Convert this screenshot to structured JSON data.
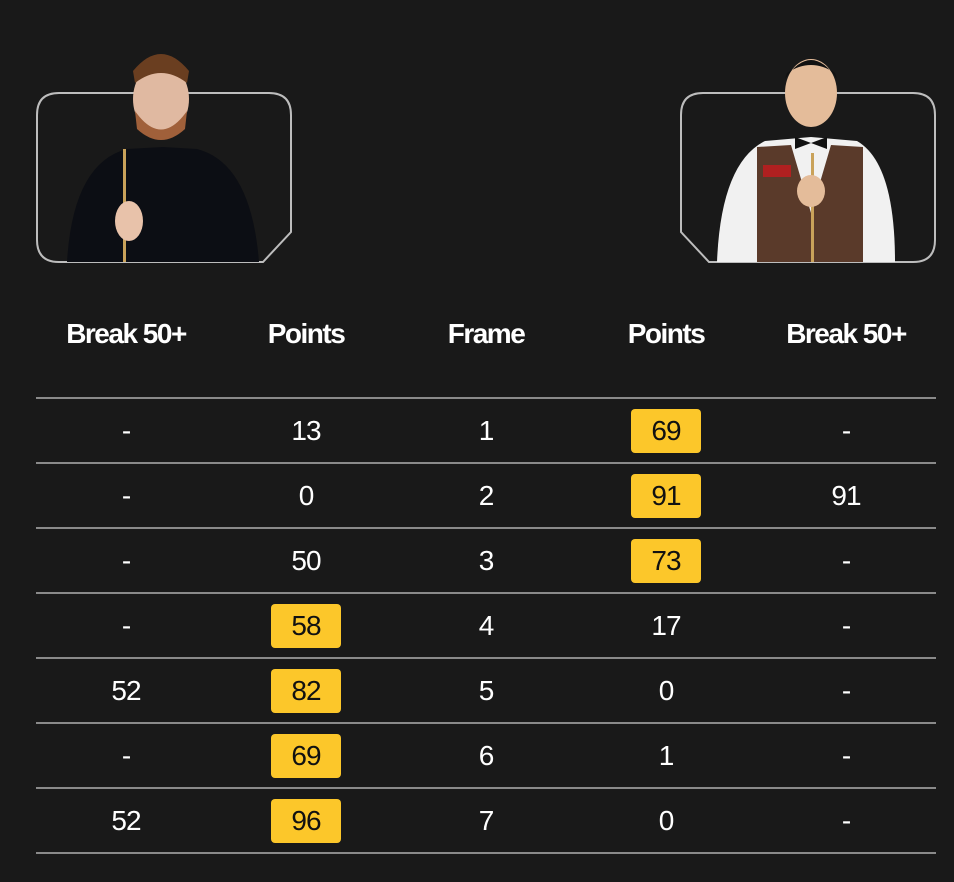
{
  "players": [
    {
      "side": "left",
      "image": "player-photo-black-shirt"
    },
    {
      "side": "right",
      "image": "player-photo-brown-waistcoat"
    }
  ],
  "headers": [
    "Break 50+",
    "Points",
    "Frame",
    "Points",
    "Break 50+"
  ],
  "rows": [
    {
      "l_break": "-",
      "l_points": "13",
      "frame": "1",
      "r_points": "69",
      "r_break": "-",
      "winner": "right"
    },
    {
      "l_break": "-",
      "l_points": "0",
      "frame": "2",
      "r_points": "91",
      "r_break": "91",
      "winner": "right"
    },
    {
      "l_break": "-",
      "l_points": "50",
      "frame": "3",
      "r_points": "73",
      "r_break": "-",
      "winner": "right"
    },
    {
      "l_break": "-",
      "l_points": "58",
      "frame": "4",
      "r_points": "17",
      "r_break": "-",
      "winner": "left"
    },
    {
      "l_break": "52",
      "l_points": "82",
      "frame": "5",
      "r_points": "0",
      "r_break": "-",
      "winner": "left"
    },
    {
      "l_break": "-",
      "l_points": "69",
      "frame": "6",
      "r_points": "1",
      "r_break": "-",
      "winner": "left"
    },
    {
      "l_break": "52",
      "l_points": "96",
      "frame": "7",
      "r_points": "0",
      "r_break": "-",
      "winner": "left"
    }
  ],
  "colors": {
    "background": "#191919",
    "winner_badge": "#fcc72a",
    "divider": "#8a8a8a"
  }
}
